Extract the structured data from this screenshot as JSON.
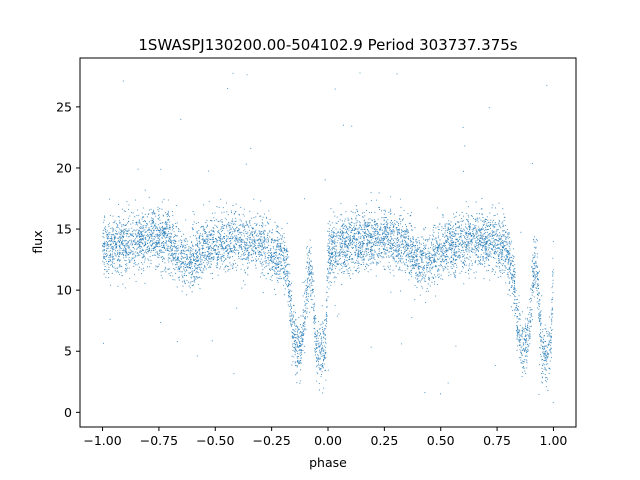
{
  "chart_data": {
    "type": "scatter",
    "title": "1SWASPJ130200.00-504102.9 Period 303737.375s",
    "xlabel": "phase",
    "ylabel": "flux",
    "xlim": [
      -1.1,
      1.1
    ],
    "ylim": [
      -1.2,
      29.0
    ],
    "xticks": [
      -1.0,
      -0.75,
      -0.5,
      -0.25,
      0.0,
      0.25,
      0.5,
      0.75,
      1.0
    ],
    "xtick_labels": [
      "−1.00",
      "−0.75",
      "−0.50",
      "−0.25",
      "0.00",
      "0.25",
      "0.50",
      "0.75",
      "1.00"
    ],
    "yticks": [
      0,
      5,
      10,
      15,
      20,
      25
    ],
    "ytick_labels": [
      "0",
      "5",
      "10",
      "15",
      "20",
      "25"
    ],
    "grid": false,
    "point_color": "#1f77b4",
    "series": [
      {
        "trend": {
          "x": [
            -1.0,
            -0.95,
            -0.9,
            -0.85,
            -0.8,
            -0.75,
            -0.7,
            -0.65,
            -0.6,
            -0.55,
            -0.5,
            -0.45,
            -0.4,
            -0.35,
            -0.3,
            -0.25,
            -0.2,
            -0.175,
            -0.16,
            -0.14,
            -0.12,
            -0.105,
            -0.09,
            -0.08,
            -0.07,
            -0.06,
            -0.05,
            -0.03,
            -0.01,
            0.0,
            0.05,
            0.1,
            0.15,
            0.2,
            0.25,
            0.3,
            0.35,
            0.4,
            0.45,
            0.5,
            0.55,
            0.6,
            0.65,
            0.7,
            0.75,
            0.8,
            0.825,
            0.84,
            0.86,
            0.88,
            0.895,
            0.91,
            0.92,
            0.93,
            0.94,
            0.95,
            0.97,
            0.99,
            1.0
          ],
          "y": [
            13.5,
            13.6,
            13.8,
            14.0,
            14.2,
            14.4,
            14.1,
            12.5,
            12.3,
            13.5,
            13.7,
            13.9,
            14.2,
            14.0,
            13.8,
            13.0,
            12.8,
            11.0,
            7.0,
            5.2,
            5.3,
            7.5,
            11.0,
            12.0,
            11.0,
            7.5,
            5.0,
            4.8,
            5.5,
            12.8,
            13.6,
            13.8,
            14.0,
            14.2,
            14.3,
            14.1,
            13.7,
            12.3,
            12.2,
            13.5,
            13.7,
            13.9,
            14.2,
            14.0,
            13.8,
            13.0,
            11.0,
            7.0,
            5.2,
            5.3,
            7.5,
            11.0,
            12.0,
            11.0,
            7.5,
            5.0,
            4.8,
            5.5,
            13.0
          ]
        },
        "scatter_sd": 1.2,
        "outlier_range": [
          0.5,
          27.8
        ]
      }
    ]
  }
}
